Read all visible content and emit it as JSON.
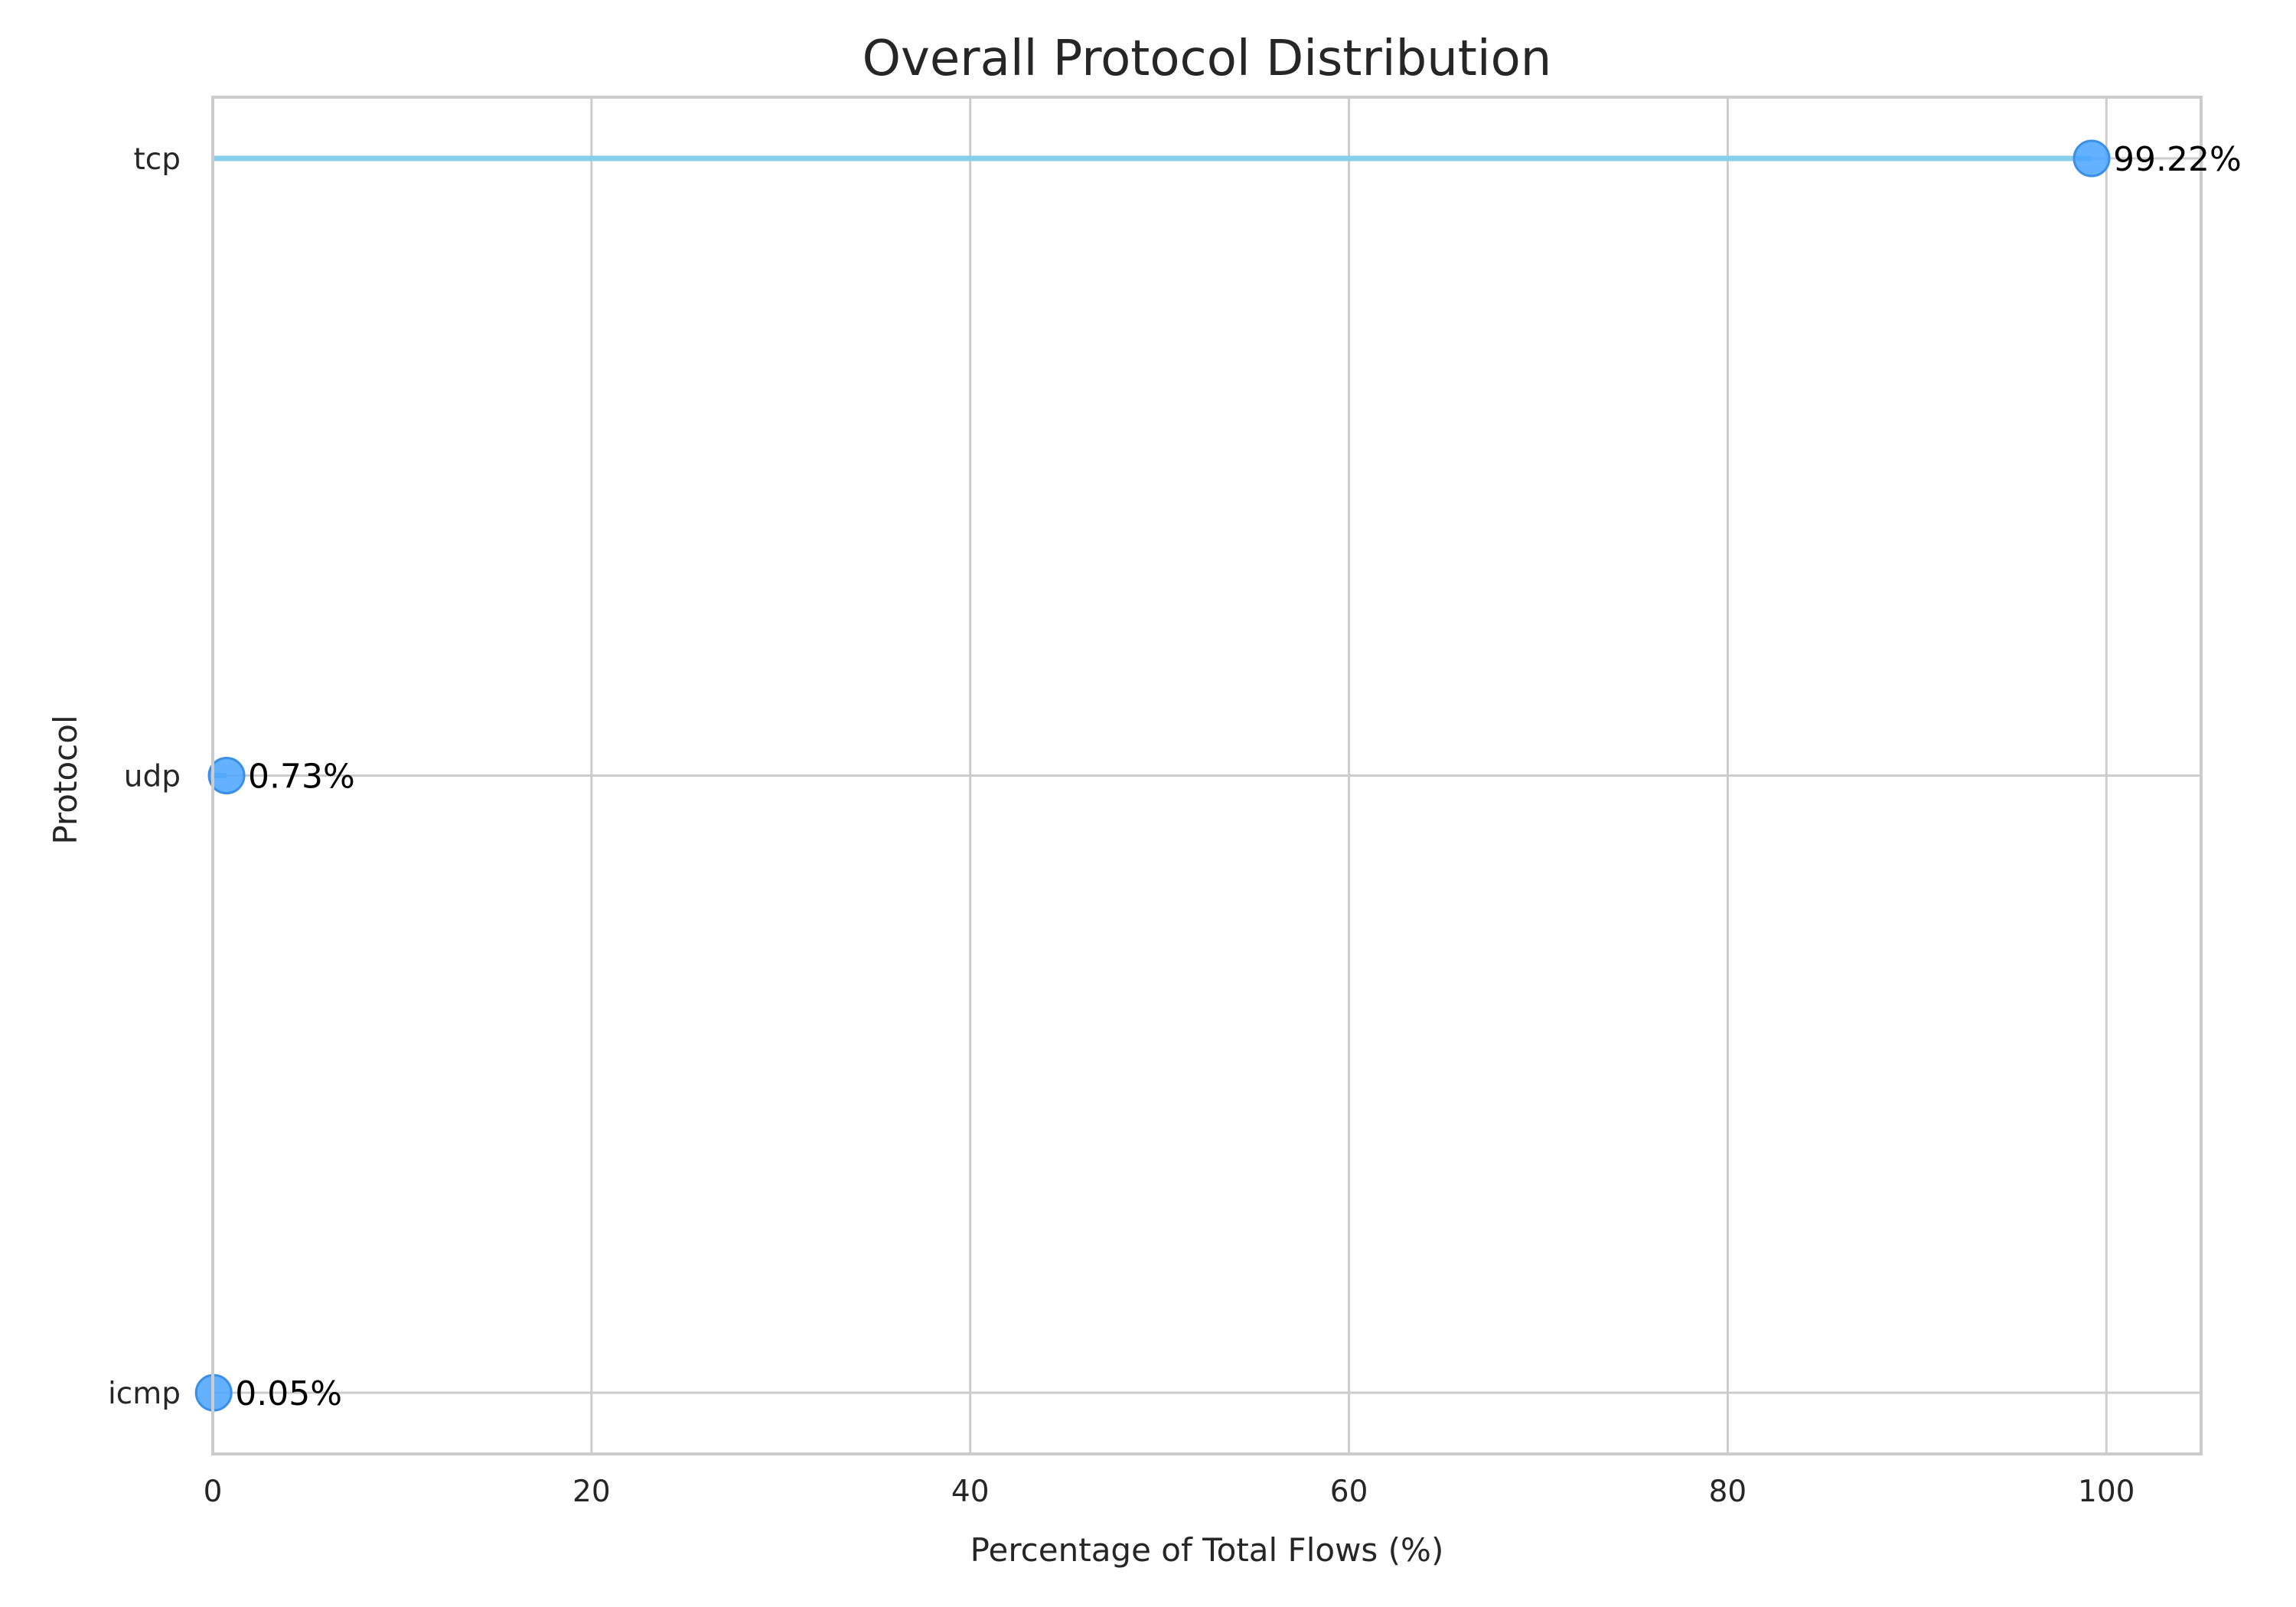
{
  "chart_data": {
    "type": "scatter",
    "title": "Overall Protocol Distribution",
    "xlabel": "Percentage of Total Flows (%)",
    "ylabel": "Protocol",
    "categories": [
      "tcp",
      "udp",
      "icmp"
    ],
    "values": [
      99.22,
      0.73,
      0.05
    ],
    "data_labels": [
      "99.22%",
      "0.73%",
      "0.05%"
    ],
    "xlim": [
      0,
      105
    ],
    "x_ticks": [
      0,
      20,
      40,
      60,
      80,
      100
    ],
    "x_tick_labels": [
      "0",
      "20",
      "40",
      "60",
      "80",
      "100"
    ],
    "grid": true,
    "colors": {
      "stem": "#87ceeb",
      "marker": "#4da6ff",
      "marker_edge": "#3c8fe6",
      "grid": "#cccccc",
      "frame": "#cccccc"
    }
  }
}
